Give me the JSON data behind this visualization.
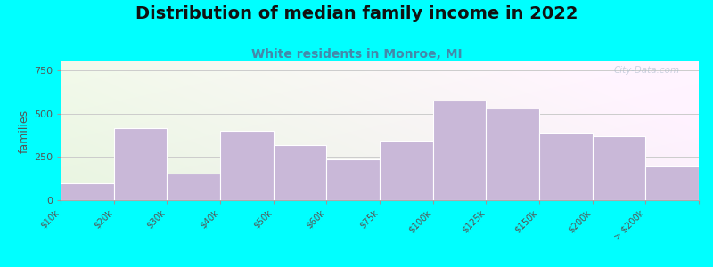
{
  "title": "Distribution of median family income in 2022",
  "subtitle": "White residents in Monroe, MI",
  "categories": [
    "$10k",
    "$20k",
    "$30k",
    "$40k",
    "$50k",
    "$60k",
    "$75k",
    "$100k",
    "$125k",
    "$150k",
    "$200k",
    "> $200k"
  ],
  "values": [
    100,
    415,
    155,
    400,
    320,
    235,
    345,
    575,
    530,
    390,
    370,
    195
  ],
  "bar_color": "#c9b8d8",
  "bar_edge_color": "#ffffff",
  "background_color": "#00ffff",
  "plot_bg_colors": [
    "#f5f0f8",
    "#eaf4e2"
  ],
  "ylabel": "families",
  "ylim": [
    0,
    800
  ],
  "yticks": [
    0,
    250,
    500,
    750
  ],
  "grid_color": "#cccccc",
  "title_fontsize": 14,
  "subtitle_fontsize": 10,
  "subtitle_color": "#4488aa",
  "watermark": "City-Data.com",
  "title_color": "#111111",
  "tick_label_color": "#555555"
}
